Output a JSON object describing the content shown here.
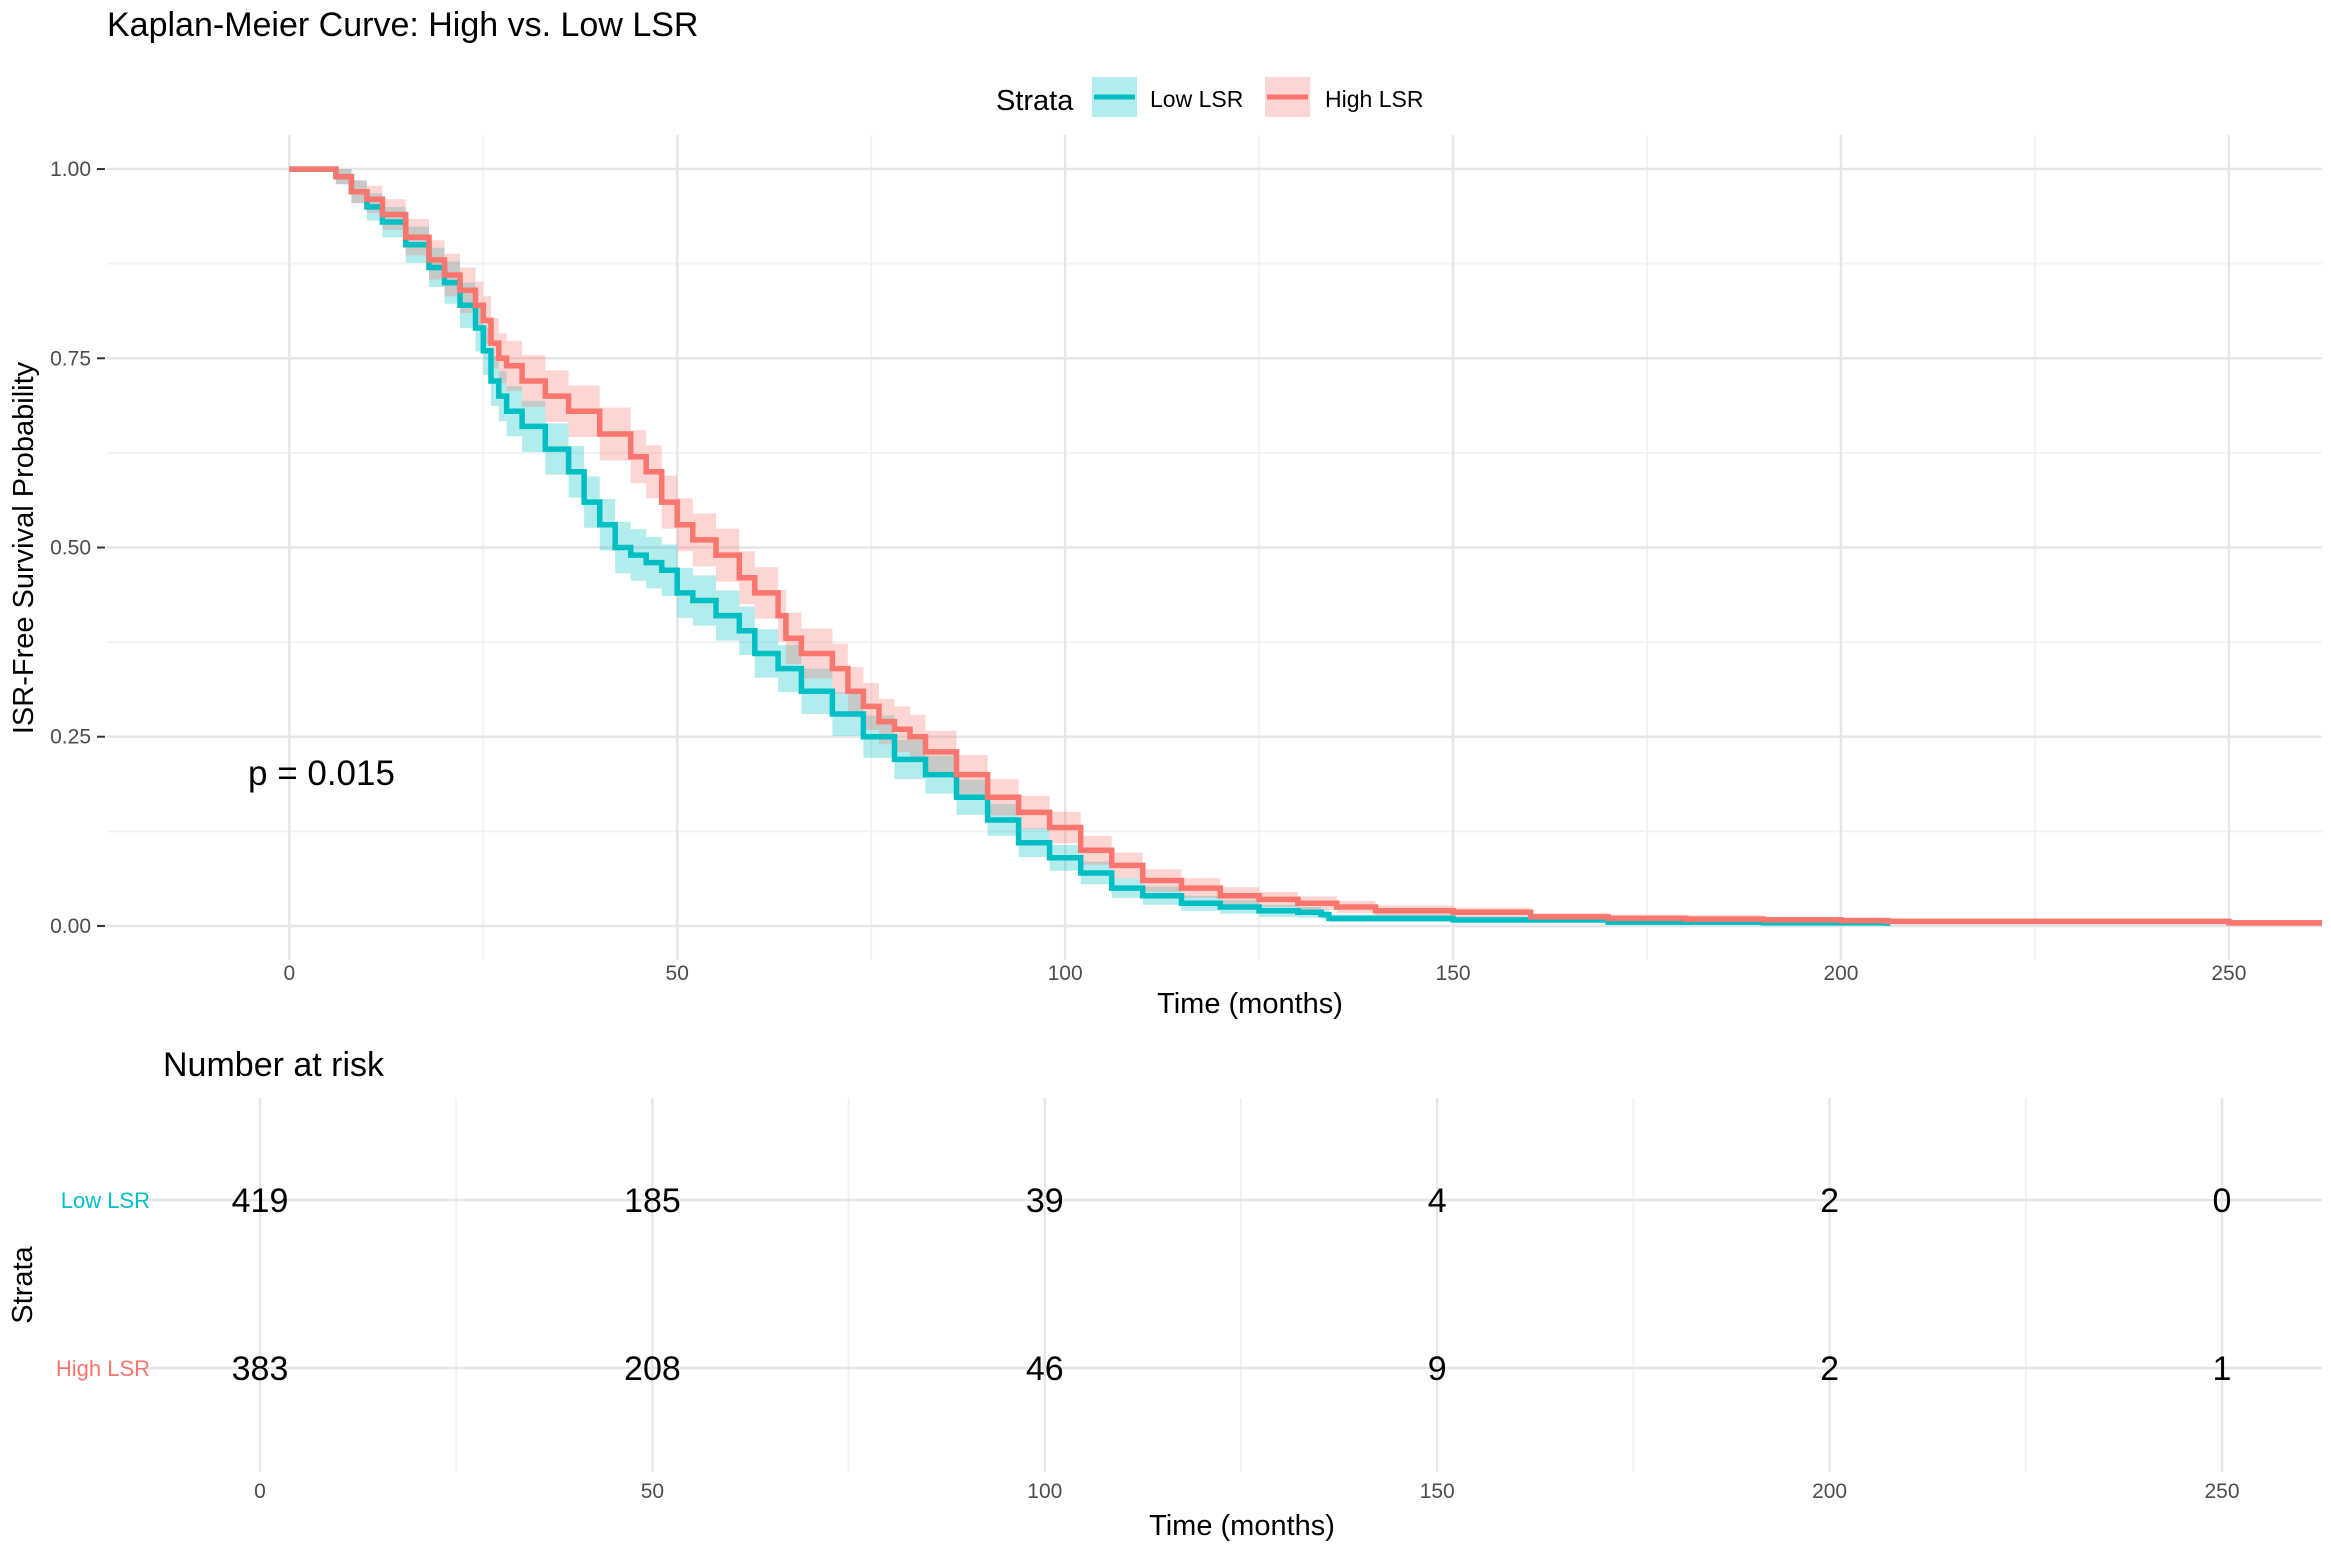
{
  "chart_data": [
    {
      "type": "line",
      "title": "Kaplan-Meier Curve: High vs. Low LSR",
      "xlabel": "Time (months)",
      "ylabel": "ISR-Free Survival Probability",
      "xlim": [
        -23.5,
        262
      ],
      "ylim": [
        -0.045,
        1.045
      ],
      "x_ticks": [
        0,
        50,
        100,
        150,
        200,
        250
      ],
      "x_tick_labels": [
        "0",
        "50",
        "100",
        "150",
        "200",
        "250"
      ],
      "y_ticks": [
        0,
        0.25,
        0.5,
        0.75,
        1.0
      ],
      "y_tick_labels": [
        "0.00",
        "0.25",
        "0.50",
        "0.75",
        "1.00"
      ],
      "grid": true,
      "legend": {
        "title": "Strata",
        "position": "top"
      },
      "annotation": "p = 0.015",
      "series": [
        {
          "name": "Low LSR",
          "color": "#00BFC4",
          "x": [
            0,
            4,
            6,
            8,
            10,
            12,
            15,
            18,
            20,
            22,
            24,
            25,
            26,
            27,
            28,
            30,
            33,
            36,
            38,
            40,
            42,
            44,
            46,
            48,
            50,
            52,
            55,
            58,
            60,
            63,
            66,
            70,
            74,
            78,
            82,
            86,
            90,
            94,
            98,
            102,
            106,
            110,
            115,
            120,
            125,
            130,
            133,
            134,
            140,
            150,
            160,
            170,
            180,
            190,
            200,
            206
          ],
          "y": [
            1.0,
            1.0,
            0.99,
            0.97,
            0.95,
            0.93,
            0.9,
            0.87,
            0.85,
            0.82,
            0.79,
            0.76,
            0.72,
            0.7,
            0.68,
            0.66,
            0.63,
            0.6,
            0.56,
            0.53,
            0.5,
            0.49,
            0.48,
            0.47,
            0.44,
            0.43,
            0.41,
            0.39,
            0.36,
            0.34,
            0.31,
            0.28,
            0.25,
            0.22,
            0.2,
            0.17,
            0.14,
            0.11,
            0.09,
            0.07,
            0.05,
            0.04,
            0.03,
            0.025,
            0.02,
            0.018,
            0.015,
            0.01,
            0.01,
            0.008,
            0.008,
            0.005,
            0.005,
            0.004,
            0.004,
            0.0
          ],
          "ci_width": [
            0,
            0,
            0.01,
            0.015,
            0.018,
            0.02,
            0.024,
            0.026,
            0.028,
            0.03,
            0.031,
            0.032,
            0.033,
            0.033,
            0.033,
            0.034,
            0.034,
            0.034,
            0.034,
            0.034,
            0.034,
            0.034,
            0.034,
            0.034,
            0.033,
            0.033,
            0.033,
            0.032,
            0.032,
            0.031,
            0.03,
            0.029,
            0.028,
            0.026,
            0.025,
            0.023,
            0.021,
            0.019,
            0.017,
            0.015,
            0.013,
            0.012,
            0.01,
            0.009,
            0.008,
            0.007,
            0.006,
            0.005,
            0.005,
            0.004,
            0.004,
            0.003,
            0.003,
            0.003,
            0.003,
            0.003
          ]
        },
        {
          "name": "High LSR",
          "color": "#F8766D",
          "x": [
            0,
            4,
            6,
            8,
            10,
            12,
            15,
            18,
            20,
            22,
            24,
            25,
            26,
            27,
            28,
            30,
            33,
            36,
            40,
            44,
            46,
            48,
            50,
            52,
            55,
            58,
            60,
            63,
            64,
            66,
            70,
            72,
            74,
            76,
            78,
            80,
            82,
            86,
            90,
            94,
            98,
            102,
            106,
            110,
            115,
            120,
            125,
            130,
            135,
            140,
            150,
            160,
            170,
            180,
            190,
            200,
            206,
            220,
            240,
            250,
            262
          ],
          "y": [
            1.0,
            1.0,
            0.99,
            0.97,
            0.96,
            0.94,
            0.91,
            0.88,
            0.86,
            0.84,
            0.82,
            0.8,
            0.77,
            0.75,
            0.74,
            0.72,
            0.7,
            0.68,
            0.65,
            0.62,
            0.6,
            0.56,
            0.53,
            0.51,
            0.49,
            0.46,
            0.44,
            0.41,
            0.38,
            0.36,
            0.34,
            0.31,
            0.29,
            0.27,
            0.26,
            0.25,
            0.23,
            0.2,
            0.17,
            0.15,
            0.13,
            0.1,
            0.08,
            0.06,
            0.05,
            0.04,
            0.035,
            0.03,
            0.025,
            0.02,
            0.018,
            0.012,
            0.01,
            0.009,
            0.008,
            0.007,
            0.006,
            0.006,
            0.006,
            0.004,
            0.004
          ],
          "ci_width": [
            0,
            0,
            0.01,
            0.015,
            0.018,
            0.02,
            0.024,
            0.026,
            0.028,
            0.03,
            0.031,
            0.032,
            0.033,
            0.033,
            0.033,
            0.034,
            0.034,
            0.034,
            0.035,
            0.035,
            0.035,
            0.035,
            0.035,
            0.035,
            0.035,
            0.035,
            0.034,
            0.034,
            0.034,
            0.033,
            0.033,
            0.032,
            0.031,
            0.03,
            0.03,
            0.029,
            0.028,
            0.026,
            0.024,
            0.022,
            0.021,
            0.019,
            0.017,
            0.015,
            0.013,
            0.011,
            0.01,
            0.009,
            0.008,
            0.007,
            0.006,
            0.005,
            0.005,
            0.005,
            0.004,
            0.004,
            0.004,
            0.004,
            0.004,
            0.004,
            0.004
          ]
        }
      ]
    },
    {
      "type": "table",
      "title": "Number at risk",
      "xlabel": "Time (months)",
      "ylabel": "Strata",
      "x_ticks": [
        0,
        50,
        100,
        150,
        200,
        250
      ],
      "x_tick_labels": [
        "0",
        "50",
        "100",
        "150",
        "200",
        "250"
      ],
      "rows": [
        {
          "name": "Low LSR",
          "color": "#00BFC4",
          "values": [
            "419",
            "185",
            "39",
            "4",
            "2",
            "0"
          ]
        },
        {
          "name": "High LSR",
          "color": "#F8766D",
          "values": [
            "383",
            "208",
            "46",
            "9",
            "2",
            "1"
          ]
        }
      ]
    }
  ]
}
